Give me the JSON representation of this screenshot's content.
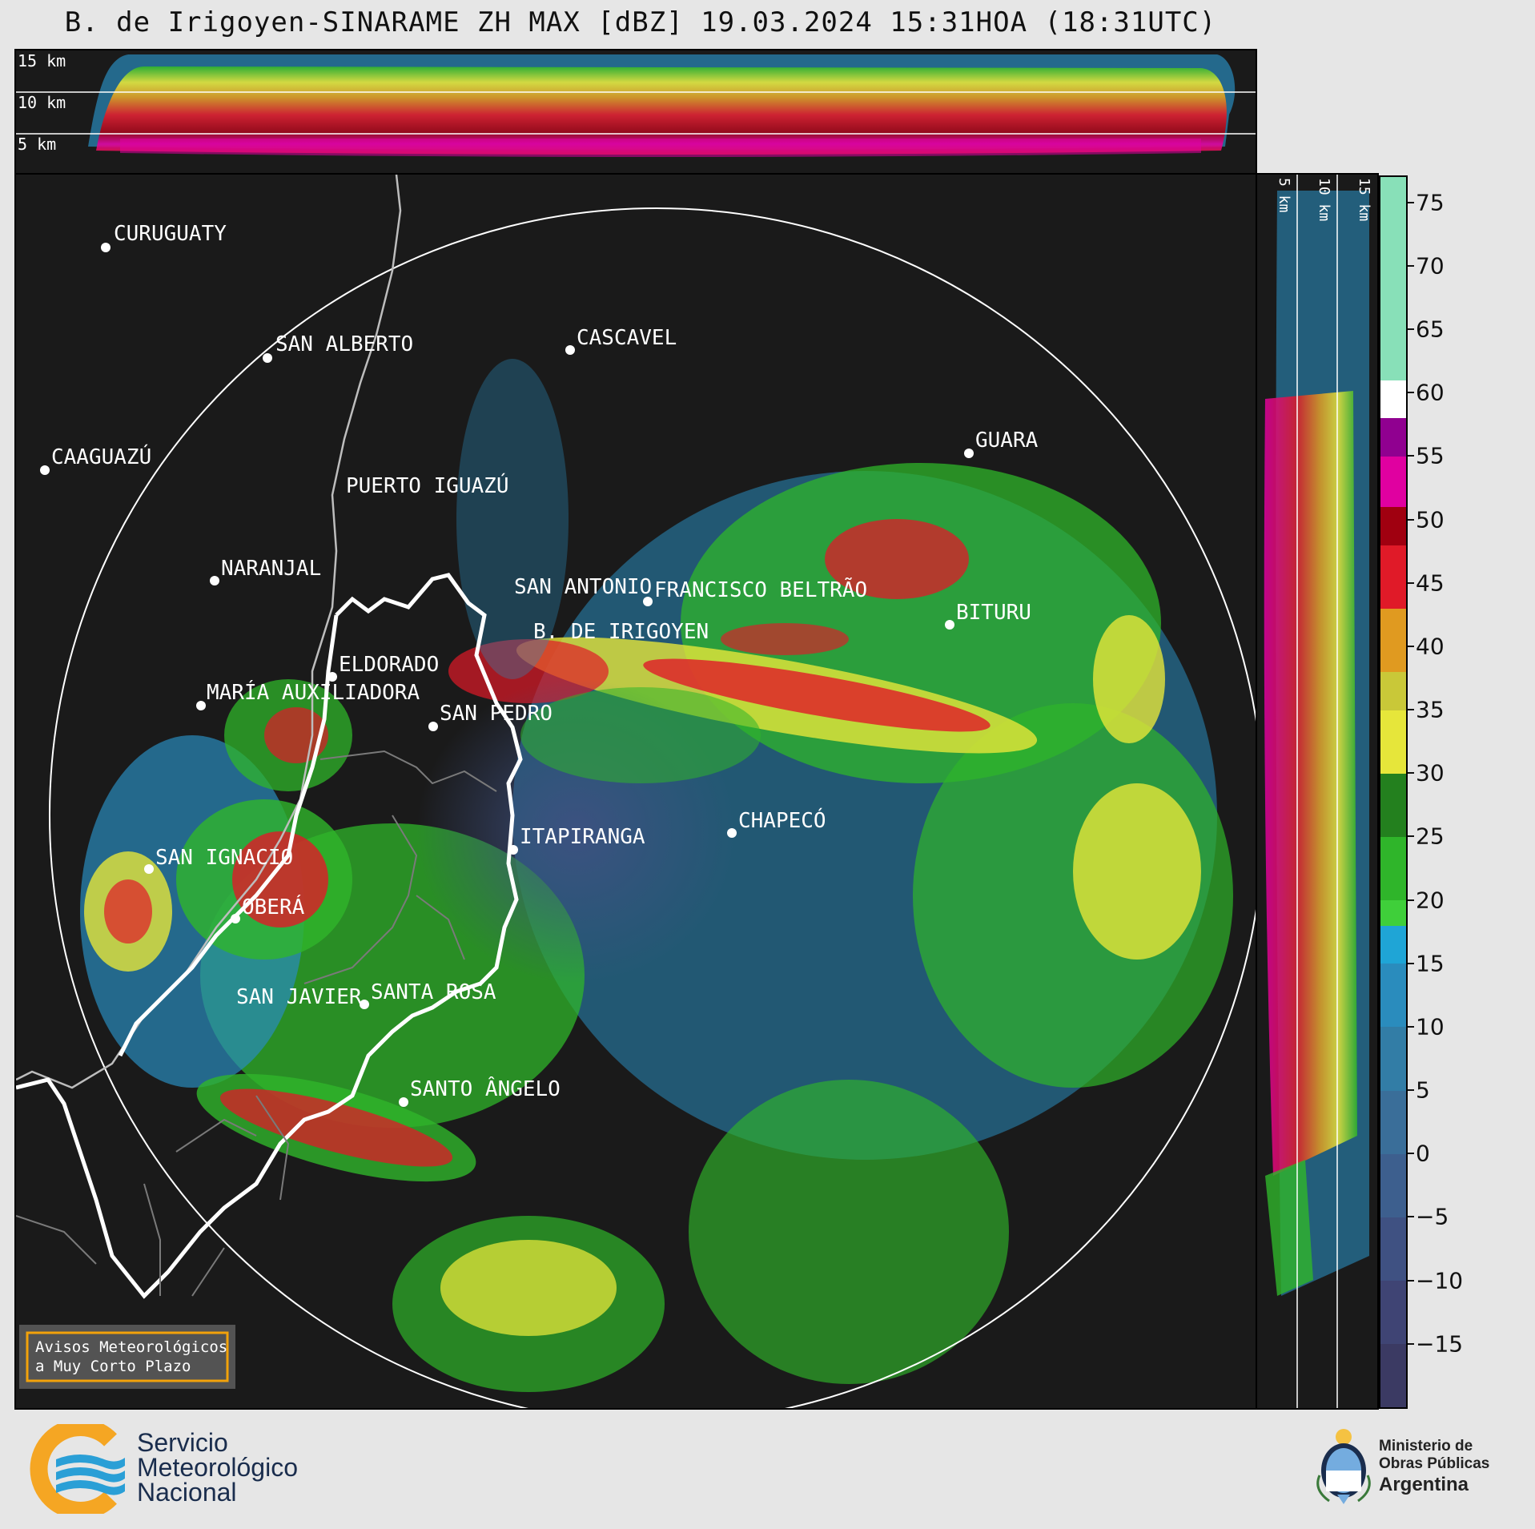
{
  "title": "B. de Irigoyen-SINARAME ZH MAX [dBZ] 19.03.2024 15:31HOA (18:31UTC)",
  "top_panel": {
    "height_labels": [
      "15 km",
      "10 km",
      "5 km"
    ]
  },
  "side_panel": {
    "height_labels": [
      "5 km",
      "10 km",
      "15 km"
    ]
  },
  "colorbar": {
    "ticks": [
      "75",
      "70",
      "65",
      "60",
      "55",
      "50",
      "45",
      "40",
      "35",
      "30",
      "25",
      "20",
      "15",
      "10",
      "5",
      "0",
      "−5",
      "−10",
      "−15"
    ],
    "tick_values": [
      75,
      70,
      65,
      60,
      55,
      50,
      45,
      40,
      35,
      30,
      25,
      20,
      15,
      10,
      5,
      0,
      -5,
      -10,
      -15
    ],
    "range": [
      -20,
      77
    ],
    "colors": [
      {
        "from": -20,
        "to": -15,
        "color": "#3b3a63"
      },
      {
        "from": -15,
        "to": -10,
        "color": "#3f4474"
      },
      {
        "from": -10,
        "to": -5,
        "color": "#3f5182"
      },
      {
        "from": -5,
        "to": 0,
        "color": "#3d5f8e"
      },
      {
        "from": 0,
        "to": 5,
        "color": "#3a6e99"
      },
      {
        "from": 5,
        "to": 10,
        "color": "#327da6"
      },
      {
        "from": 10,
        "to": 15,
        "color": "#2a8cbd"
      },
      {
        "from": 15,
        "to": 18,
        "color": "#1fa5d6"
      },
      {
        "from": 18,
        "to": 20,
        "color": "#3fcf3a"
      },
      {
        "from": 20,
        "to": 25,
        "color": "#2fb52a"
      },
      {
        "from": 25,
        "to": 30,
        "color": "#23801e"
      },
      {
        "from": 30,
        "to": 35,
        "color": "#e6e63a"
      },
      {
        "from": 35,
        "to": 38,
        "color": "#c9c838"
      },
      {
        "from": 38,
        "to": 43,
        "color": "#e09a20"
      },
      {
        "from": 43,
        "to": 48,
        "color": "#e01a28"
      },
      {
        "from": 48,
        "to": 51,
        "color": "#a00010"
      },
      {
        "from": 51,
        "to": 55,
        "color": "#e000a0"
      },
      {
        "from": 55,
        "to": 58,
        "color": "#900090"
      },
      {
        "from": 58,
        "to": 61,
        "color": "#ffffff"
      },
      {
        "from": 61,
        "to": 77,
        "color": "#88e0b8"
      }
    ]
  },
  "cities": [
    {
      "name": "CURUGUATY"
    },
    {
      "name": "SAN ALBERTO"
    },
    {
      "name": "CASCAVEL"
    },
    {
      "name": "CAAGUAZÚ"
    },
    {
      "name": "GUARA"
    },
    {
      "name": "PUERTO IGUAZÚ"
    },
    {
      "name": "NARANJAL"
    },
    {
      "name": "SAN ANTONIO"
    },
    {
      "name": "FRANCISCO BELTRÃO"
    },
    {
      "name": "BITURU"
    },
    {
      "name": "B. DE IRIGOYEN"
    },
    {
      "name": "ELDORADO"
    },
    {
      "name": "MARÍA AUXILIADORA"
    },
    {
      "name": "SAN PEDRO"
    },
    {
      "name": "ITAPIRANGA"
    },
    {
      "name": "CHAPECÓ"
    },
    {
      "name": "SAN IGNACIO"
    },
    {
      "name": "OBERÁ"
    },
    {
      "name": "SAN JAVIER"
    },
    {
      "name": "SANTA ROSA"
    },
    {
      "name": "SANTO ÂNGELO"
    }
  ],
  "warning_box": {
    "line1": "Avisos Meteorológicos",
    "line2": "a Muy Corto Plazo"
  },
  "footer": {
    "smn_line1": "Servicio",
    "smn_line2": "Meteorológico",
    "smn_line3": "Nacional",
    "ministry_line1": "Ministerio de",
    "ministry_line2": "Obras Públicas",
    "ministry_line3": "Argentina"
  }
}
